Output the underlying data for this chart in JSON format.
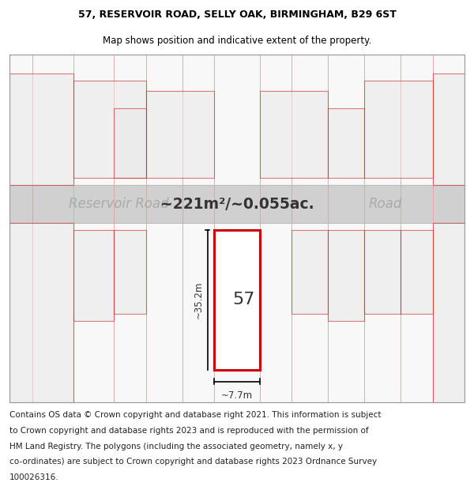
{
  "title_line1": "57, RESERVOIR ROAD, SELLY OAK, BIRMINGHAM, B29 6ST",
  "title_line2": "Map shows position and indicative extent of the property.",
  "area_text": "~221m²/~0.055ac.",
  "road_label_left": "Reservoir Road",
  "road_label_right": "Road",
  "property_number": "57",
  "dim_width": "~7.7m",
  "dim_height": "~35.2m",
  "footer_lines": [
    "Contains OS data © Crown copyright and database right 2021. This information is subject",
    "to Crown copyright and database rights 2023 and is reproduced with the permission of",
    "HM Land Registry. The polygons (including the associated geometry, namely x, y",
    "co-ordinates) are subject to Crown copyright and database rights 2023 Ordnance Survey",
    "100026316."
  ],
  "bg_color": "#ffffff",
  "plot_outline_color": "#cc0000",
  "neighbor_outline_color": "#cc0000",
  "neighbor_fill": "#e8e8e8",
  "grid_line_color": "#e8a0a0",
  "road_stripe_color": "#d0d0d0",
  "title_fontsize": 9,
  "footer_fontsize": 7.5
}
